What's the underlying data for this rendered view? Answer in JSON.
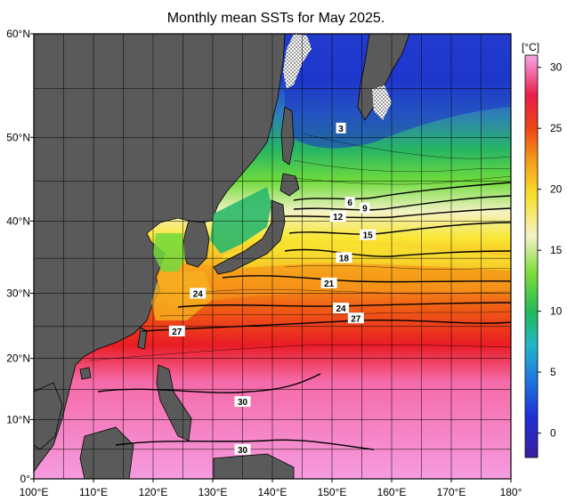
{
  "title": "Monthly mean SSTs for May 2025.",
  "lat_labels": [
    "60°N",
    "50°N",
    "40°N",
    "30°N",
    "20°N",
    "10°N",
    "0°"
  ],
  "lon_labels": [
    "100°E",
    "110°E",
    "120°E",
    "130°E",
    "140°E",
    "150°E",
    "160°E",
    "170°E",
    "180°"
  ],
  "colorbar": {
    "unit": "[°C]",
    "ticks": [
      "0",
      "5",
      "10",
      "15",
      "20",
      "25",
      "30"
    ],
    "range": [
      -2,
      31
    ]
  },
  "contour_labels": [
    {
      "text": "3",
      "lon": 151.5,
      "lat": 51.0
    },
    {
      "text": "6",
      "lon": 153.0,
      "lat": 42.4
    },
    {
      "text": "9",
      "lon": 155.5,
      "lat": 41.7
    },
    {
      "text": "12",
      "lon": 151.0,
      "lat": 40.6
    },
    {
      "text": "15",
      "lon": 156.0,
      "lat": 38.2
    },
    {
      "text": "18",
      "lon": 152.0,
      "lat": 35.1
    },
    {
      "text": "21",
      "lon": 149.5,
      "lat": 31.5
    },
    {
      "text": "24",
      "lon": 127.5,
      "lat": 30.0
    },
    {
      "text": "24",
      "lon": 151.5,
      "lat": 27.8
    },
    {
      "text": "27",
      "lon": 154.0,
      "lat": 26.3
    },
    {
      "text": "27",
      "lon": 124.0,
      "lat": 24.3
    },
    {
      "text": "30",
      "lon": 135.0,
      "lat": 13.0
    },
    {
      "text": "30",
      "lon": 135.0,
      "lat": 5.0
    }
  ],
  "colors": {
    "land": "#5a5a5a",
    "ice_pattern": "#ffffff"
  }
}
